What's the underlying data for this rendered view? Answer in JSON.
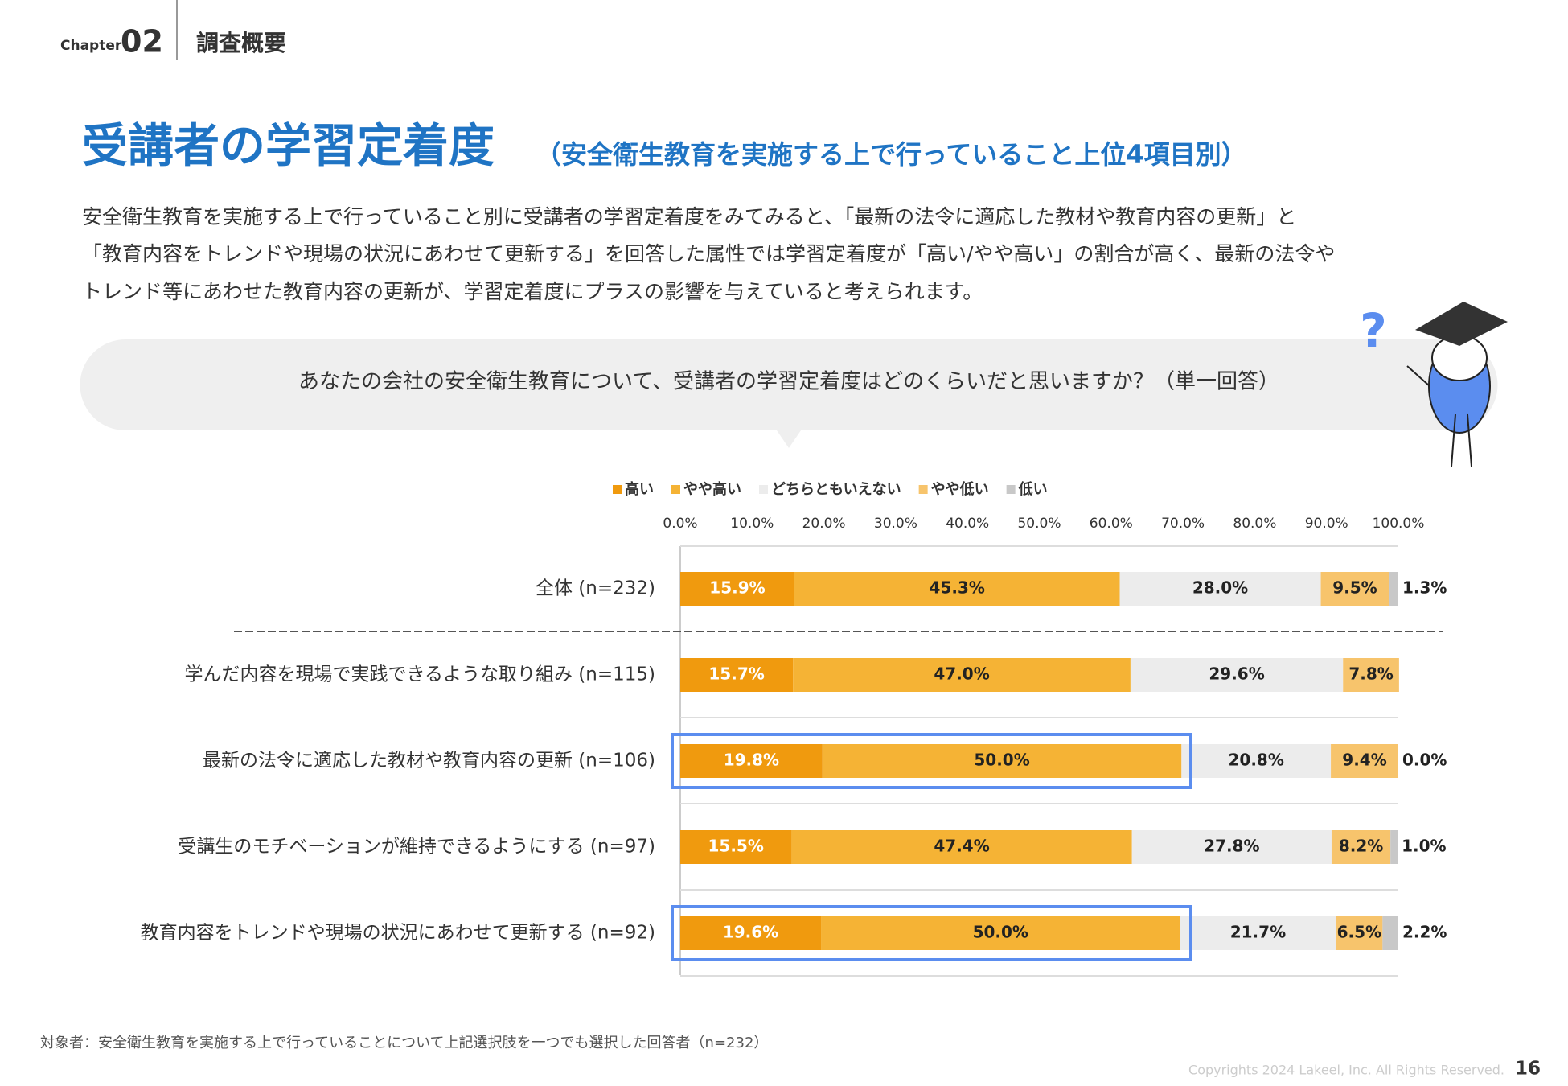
{
  "header": {
    "chapter": "Chapter",
    "number": "02",
    "section": "調査概要"
  },
  "title": "受講者の学習定着度",
  "subtitle": "（安全衛生教育を実施する上で行っていること上位4項目別）",
  "body": [
    "安全衛生教育を実施する上で行っていること別に受講者の学習定着度をみてみると、「最新の法令に適応した教材や教育内容の更新」と",
    "「教育内容をトレンドや現場の状況にあわせて更新する」を回答した属性では学習定着度が「高い/やや高い」の割合が高く、最新の法令や",
    "トレンド等にあわせた教育内容の更新が、学習定着度にプラスの影響を与えていると考えられます。"
  ],
  "question": "あなたの会社の安全衛生教育について、受講者の学習定着度はどのくらいだと思いますか？（単一回答）",
  "chart_data": {
    "type": "stacked-bar",
    "orientation": "horizontal",
    "categories": [
      "全体 (n=232)",
      "学んだ内容を現場で実践できるような取り組み (n=115)",
      "最新の法令に適応した教材や教育内容の更新 (n=106)",
      "受講生のモチベーションが維持できるようにする (n=97)",
      "教育内容をトレンドや現場の状況にあわせて更新する (n=92)"
    ],
    "series": [
      {
        "name": "高い",
        "color": "#f09a0e",
        "values": [
          15.9,
          15.7,
          19.8,
          15.5,
          19.6
        ],
        "value_labels": [
          "15.9%",
          "15.7%",
          "19.8%",
          "15.5%",
          "19.6%"
        ]
      },
      {
        "name": "やや高い",
        "color": "#f5b335",
        "values": [
          45.3,
          47.0,
          50.0,
          47.4,
          50.0
        ],
        "value_labels": [
          "45.3%",
          "47.0%",
          "50.0%",
          "47.4%",
          "50.0%"
        ]
      },
      {
        "name": "どちらともいえない",
        "color": "#ececec",
        "values": [
          28.0,
          29.6,
          20.8,
          27.8,
          21.7
        ],
        "value_labels": [
          "28.0%",
          "29.6%",
          "20.8%",
          "27.8%",
          "21.7%"
        ]
      },
      {
        "name": "やや低い",
        "color": "#f7c46c",
        "values": [
          9.5,
          7.8,
          9.4,
          8.2,
          6.5
        ],
        "value_labels": [
          "9.5%",
          "7.8%",
          "9.4%",
          "8.2%",
          "6.5%"
        ]
      },
      {
        "name": "低い",
        "color": "#c8c8c8",
        "values": [
          1.3,
          null,
          0.0,
          1.0,
          2.2
        ],
        "value_labels": [
          "1.3%",
          null,
          "0.0%",
          "1.0%",
          "2.2%"
        ]
      }
    ],
    "xlim": [
      0,
      100
    ],
    "xticks": [
      {
        "value": 0,
        "label": "0.0%"
      },
      {
        "value": 10,
        "label": "10.0%"
      },
      {
        "value": 20,
        "label": "20.0%"
      },
      {
        "value": 30,
        "label": "30.0%"
      },
      {
        "value": 40,
        "label": "40.0%"
      },
      {
        "value": 50,
        "label": "50.0%"
      },
      {
        "value": 60,
        "label": "60.0%"
      },
      {
        "value": 70,
        "label": "70.0%"
      },
      {
        "value": 80,
        "label": "80.0%"
      },
      {
        "value": 90,
        "label": "90.0%"
      },
      {
        "value": 100,
        "label": "100.0%"
      }
    ]
  },
  "footnote": "対象者：安全衛生教育を実施する上で行っていることについて上記選択肢を一つでも選択した回答者（n=232）",
  "copyright": "Copyrights 2024 Lakeel, Inc. All Rights Reserved.",
  "page": "16"
}
